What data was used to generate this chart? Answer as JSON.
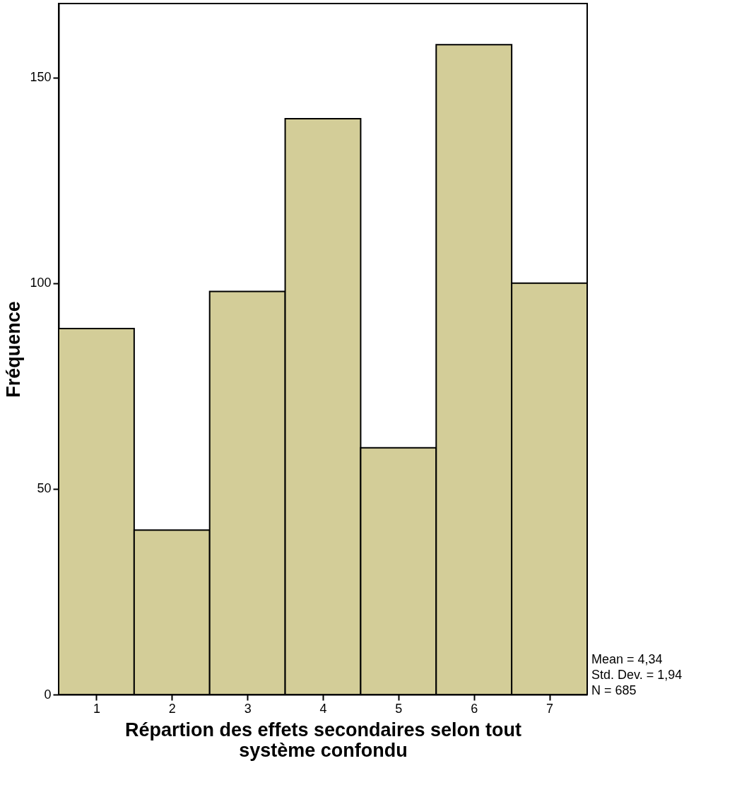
{
  "chart_data": {
    "type": "histogram",
    "xlabel": "Répartion des effets secondaires selon tout système confondu",
    "ylabel": "Fréquence",
    "bins": [
      0.5,
      1.5,
      2.5,
      3.5,
      4.5,
      5.5,
      6.5,
      7.5
    ],
    "values": [
      89,
      40,
      98,
      140,
      60,
      158,
      100
    ],
    "color": "#d3cd98",
    "xlim": [
      0.5,
      7.5
    ],
    "xticks": [
      1,
      2,
      3,
      4,
      5,
      6,
      7
    ],
    "ylim": [
      0,
      168
    ],
    "yticks": [
      0,
      50,
      100,
      150
    ],
    "grid": false,
    "annotations": [
      "Mean = 4,34",
      "Std. Dev. = 1,94",
      "N = 685"
    ]
  }
}
